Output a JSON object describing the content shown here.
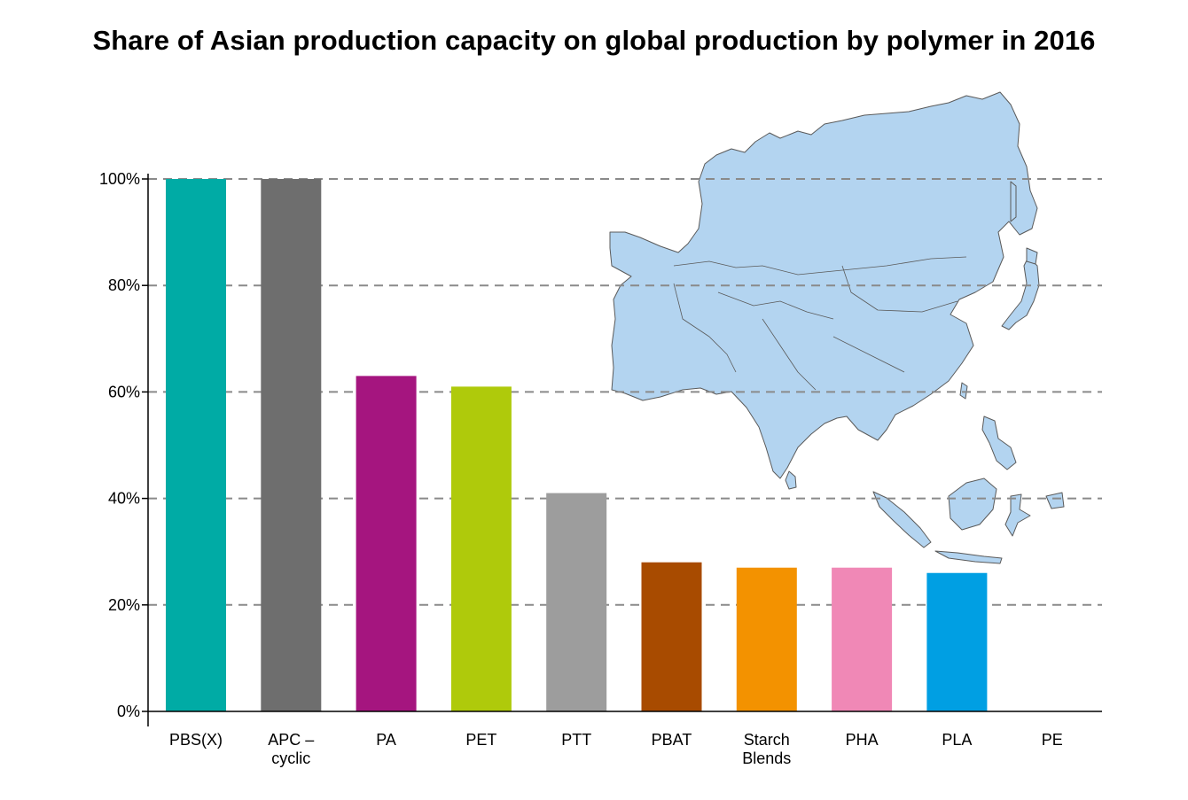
{
  "chart_data": {
    "type": "bar",
    "title": "Share of Asian production capacity on global production by polymer in 2016",
    "xlabel": "",
    "ylabel": "",
    "ylim": [
      0,
      100
    ],
    "yticks": [
      0,
      20,
      40,
      60,
      80,
      100
    ],
    "ytick_labels": [
      "0%",
      "20%",
      "40%",
      "60%",
      "80%",
      "100%"
    ],
    "grid": "dashed horizontal",
    "categories": [
      [
        "PBS(X)"
      ],
      [
        "APC –",
        "cyclic"
      ],
      [
        "PA"
      ],
      [
        "PET"
      ],
      [
        "PTT"
      ],
      [
        "PBAT"
      ],
      [
        "Starch",
        "Blends"
      ],
      [
        "PHA"
      ],
      [
        "PLA"
      ],
      [
        "PE"
      ]
    ],
    "values": [
      100,
      100,
      63,
      61,
      41,
      28,
      27,
      27,
      26,
      0
    ],
    "colors": [
      "#00aba5",
      "#6e6e6e",
      "#a5157f",
      "#afca0b",
      "#9d9d9d",
      "#a84b00",
      "#f39200",
      "#f088b6",
      "#009fe3",
      "#ffffff"
    ],
    "background_image": "asia-map"
  }
}
